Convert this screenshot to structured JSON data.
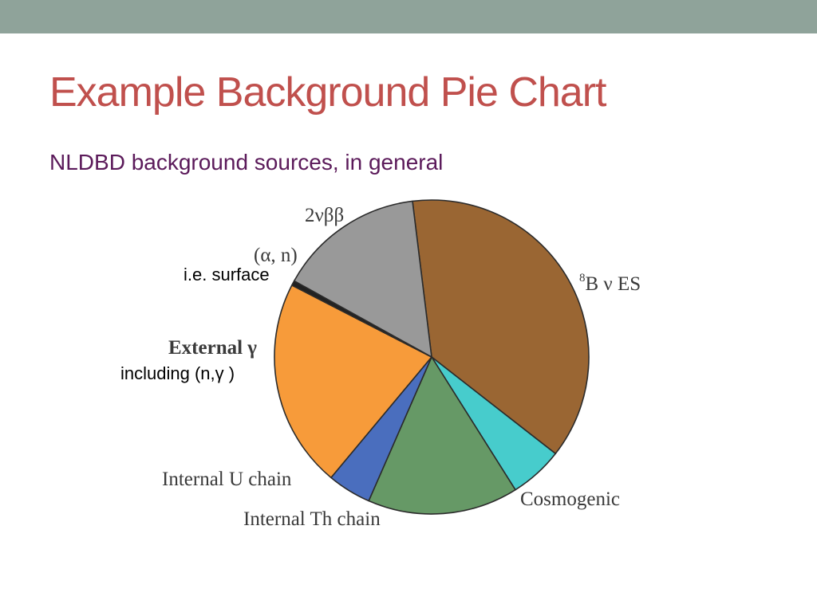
{
  "slide": {
    "title": "Example Background Pie Chart",
    "subtitle": "NLDBD background sources, in general",
    "title_color": "#c0504d",
    "subtitle_color": "#5b1a5a",
    "top_bar_color": "#8fa39a"
  },
  "chart_data": {
    "type": "pie",
    "title": "",
    "slices": [
      {
        "name": "8B ν ES",
        "value": 37.5,
        "color": "#9a6633"
      },
      {
        "name": "Cosmogenic",
        "value": 5.5,
        "color": "#47cccc"
      },
      {
        "name": "Internal Th chain",
        "value": 15.5,
        "color": "#669966"
      },
      {
        "name": "Internal U chain",
        "value": 4.5,
        "color": "#4a6ebe"
      },
      {
        "name": "External γ",
        "value": 21.5,
        "color": "#f79b3a"
      },
      {
        "name": "(α, n)",
        "value": 0.5,
        "color": "#222222"
      },
      {
        "name": "2νββ",
        "value": 15.0,
        "color": "#999999"
      }
    ],
    "annotations": [
      {
        "text": "i.e. surface",
        "refers_to": "(α, n)"
      },
      {
        "text": "including (n,γ )",
        "refers_to": "External γ"
      }
    ]
  }
}
